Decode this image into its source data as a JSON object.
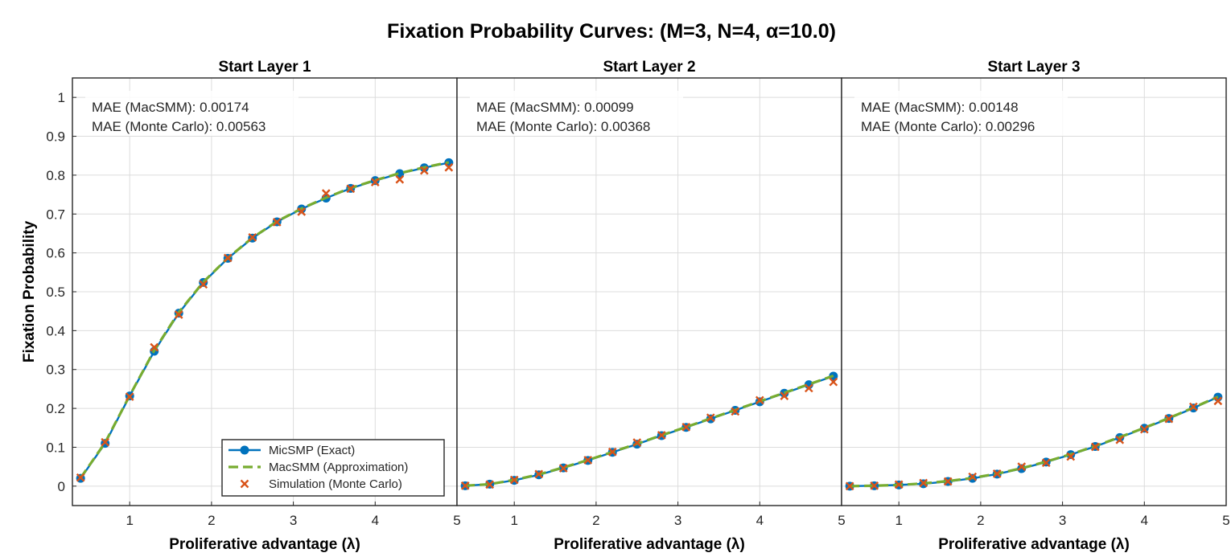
{
  "figure": {
    "title": "Fixation  Probability  Curves:  (M=3,  N=4,  α=10.0)",
    "ylabel": "Fixation Probability"
  },
  "colors": {
    "exact": "#0072BD",
    "approx": "#77AC30",
    "sim": "#D95319",
    "grid": "#dcdcdc",
    "axis": "#262626"
  },
  "legend": {
    "placement": "bottom-right of first panel",
    "entries": [
      {
        "label": "MicSMP (Exact)",
        "marker": "circle-line"
      },
      {
        "label": "MacSMM (Approximation)",
        "marker": "dashed-line"
      },
      {
        "label": "Simulation (Monte Carlo)",
        "marker": "cross"
      }
    ]
  },
  "chart_data": [
    {
      "type": "line",
      "title": "Start Layer 1",
      "xlabel": "Proliferative  advantage  (λ)",
      "ylabel": "Fixation Probability",
      "xlim": [
        0.3,
        5
      ],
      "ylim": [
        -0.05,
        1.05
      ],
      "xticks": [
        "1",
        "2",
        "3",
        "4",
        "5"
      ],
      "yticks": [
        "0",
        "0.1",
        "0.2",
        "0.3",
        "0.4",
        "0.5",
        "0.6",
        "0.7",
        "0.8",
        "0.9",
        "1"
      ],
      "grid": true,
      "annotations": [
        "MAE (MacSMM): 0.00174",
        "MAE (Monte Carlo): 0.00563"
      ],
      "x": [
        0.4,
        0.7,
        1.0,
        1.3,
        1.6,
        1.9,
        2.2,
        2.5,
        2.8,
        3.1,
        3.4,
        3.7,
        4.0,
        4.3,
        4.6,
        4.9
      ],
      "series": [
        {
          "name": "MicSMP (Exact)",
          "values": [
            0.02,
            0.11,
            0.232,
            0.347,
            0.445,
            0.524,
            0.586,
            0.638,
            0.68,
            0.713,
            0.741,
            0.766,
            0.786,
            0.804,
            0.819,
            0.832
          ]
        },
        {
          "name": "MacSMM (Approximation)",
          "values": [
            0.021,
            0.112,
            0.233,
            0.349,
            0.447,
            0.525,
            0.587,
            0.639,
            0.681,
            0.714,
            0.742,
            0.767,
            0.787,
            0.805,
            0.82,
            0.833
          ]
        },
        {
          "name": "Simulation (Monte Carlo)",
          "values": [
            0.022,
            0.113,
            0.23,
            0.357,
            0.441,
            0.519,
            0.587,
            0.64,
            0.679,
            0.706,
            0.753,
            0.765,
            0.782,
            0.789,
            0.812,
            0.82
          ]
        }
      ]
    },
    {
      "type": "line",
      "title": "Start Layer 2",
      "xlabel": "Proliferative  advantage  (λ)",
      "ylabel": "",
      "xlim": [
        0.3,
        5
      ],
      "ylim": [
        -0.05,
        1.05
      ],
      "xticks": [
        "1",
        "2",
        "3",
        "4",
        "5"
      ],
      "grid": true,
      "annotations": [
        "MAE (MacSMM): 0.00099",
        "MAE (Monte Carlo): 0.00368"
      ],
      "x": [
        0.4,
        0.7,
        1.0,
        1.3,
        1.6,
        1.9,
        2.2,
        2.5,
        2.8,
        3.1,
        3.4,
        3.7,
        4.0,
        4.3,
        4.6,
        4.9
      ],
      "series": [
        {
          "name": "MicSMP (Exact)",
          "values": [
            0.001,
            0.005,
            0.015,
            0.029,
            0.047,
            0.066,
            0.087,
            0.108,
            0.13,
            0.151,
            0.173,
            0.195,
            0.217,
            0.239,
            0.261,
            0.283
          ]
        },
        {
          "name": "MacSMM (Approximation)",
          "values": [
            0.001,
            0.005,
            0.016,
            0.03,
            0.048,
            0.067,
            0.088,
            0.109,
            0.131,
            0.152,
            0.174,
            0.196,
            0.218,
            0.24,
            0.262,
            0.284
          ]
        },
        {
          "name": "Simulation (Monte Carlo)",
          "values": [
            0.001,
            0.004,
            0.016,
            0.031,
            0.046,
            0.067,
            0.088,
            0.112,
            0.131,
            0.152,
            0.176,
            0.192,
            0.221,
            0.232,
            0.252,
            0.268
          ]
        }
      ]
    },
    {
      "type": "line",
      "title": "Start Layer 3",
      "xlabel": "Proliferative  advantage  (λ)",
      "ylabel": "",
      "xlim": [
        0.3,
        5
      ],
      "ylim": [
        -0.05,
        1.05
      ],
      "xticks": [
        "1",
        "2",
        "3",
        "4",
        "5"
      ],
      "grid": true,
      "annotations": [
        "MAE (MacSMM): 0.00148",
        "MAE (Monte Carlo): 0.00296"
      ],
      "x": [
        0.4,
        0.7,
        1.0,
        1.3,
        1.6,
        1.9,
        2.2,
        2.5,
        2.8,
        3.1,
        3.4,
        3.7,
        4.0,
        4.3,
        4.6,
        4.9
      ],
      "series": [
        {
          "name": "MicSMP (Exact)",
          "values": [
            0.0,
            0.001,
            0.003,
            0.006,
            0.012,
            0.02,
            0.031,
            0.045,
            0.062,
            0.081,
            0.102,
            0.125,
            0.149,
            0.174,
            0.201,
            0.229
          ]
        },
        {
          "name": "MacSMM (Approximation)",
          "values": [
            0.0,
            0.001,
            0.003,
            0.007,
            0.013,
            0.021,
            0.032,
            0.046,
            0.063,
            0.082,
            0.103,
            0.126,
            0.15,
            0.175,
            0.202,
            0.23
          ]
        },
        {
          "name": "Simulation (Monte Carlo)",
          "values": [
            0.0,
            0.001,
            0.004,
            0.008,
            0.012,
            0.024,
            0.032,
            0.05,
            0.06,
            0.076,
            0.101,
            0.119,
            0.146,
            0.173,
            0.204,
            0.219
          ]
        }
      ]
    }
  ]
}
